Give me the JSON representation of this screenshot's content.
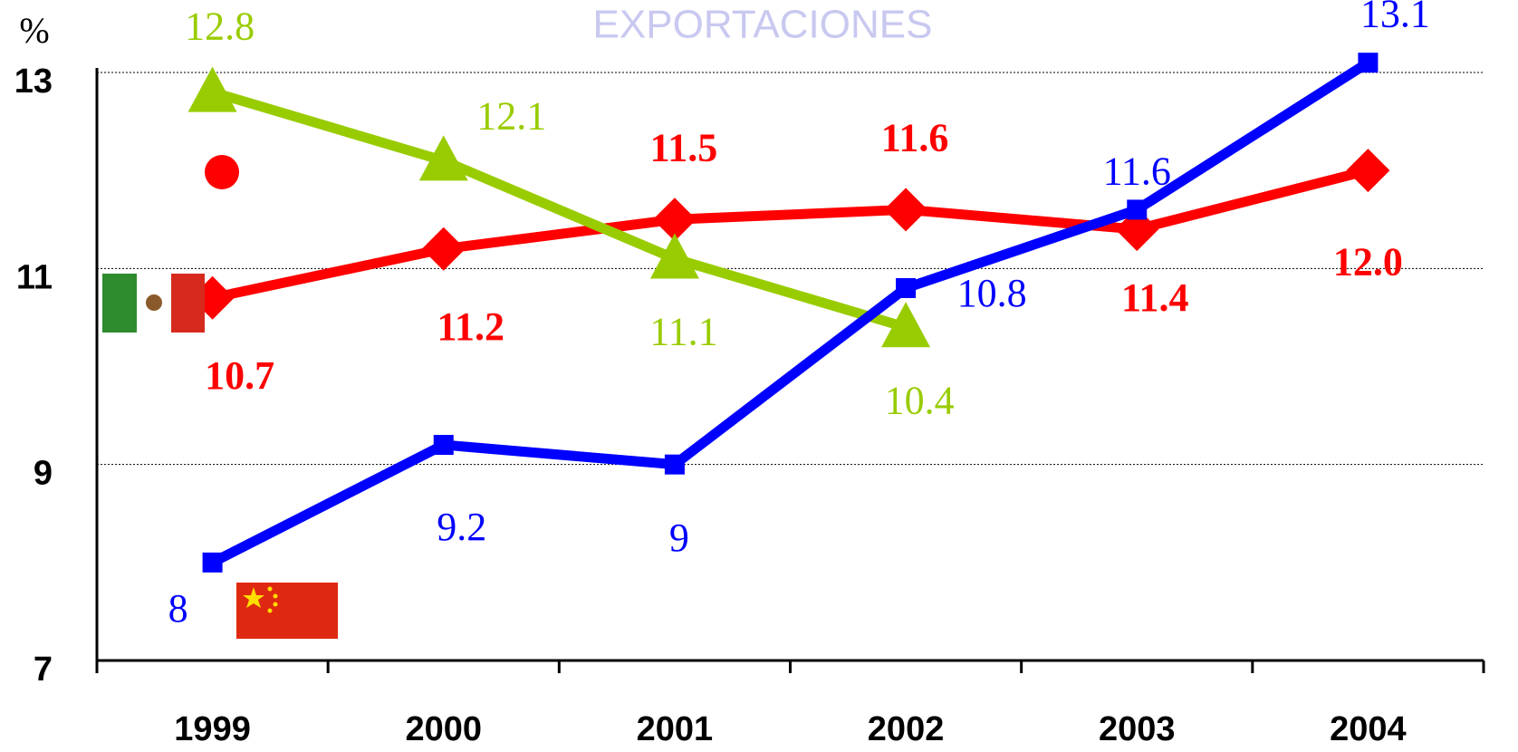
{
  "chart_data": {
    "type": "line",
    "title": "EXPORTACIONES",
    "y_label": "%",
    "categories": [
      "1999",
      "2000",
      "2001",
      "2002",
      "2003",
      "2004"
    ],
    "ylim": [
      7,
      13
    ],
    "yticks": [
      7,
      9,
      11,
      13
    ],
    "grid": true,
    "series": [
      {
        "color": "#ff0000",
        "marker": "diamond",
        "bold": true,
        "values": [
          10.7,
          11.2,
          11.5,
          11.6,
          11.4,
          12.0
        ],
        "value_labels": [
          "10.7",
          "11.2",
          "11.5",
          "11.6",
          "11.4",
          "12.0"
        ]
      },
      {
        "color": "#99cc00",
        "marker": "triangle",
        "bold": false,
        "values": [
          12.8,
          12.1,
          11.1,
          10.4,
          null,
          null
        ]
      },
      {
        "color": "#0000ff",
        "marker": "square",
        "bold": false,
        "values": [
          8,
          9.2,
          9,
          10.8,
          11.6,
          13.1
        ]
      }
    ]
  }
}
